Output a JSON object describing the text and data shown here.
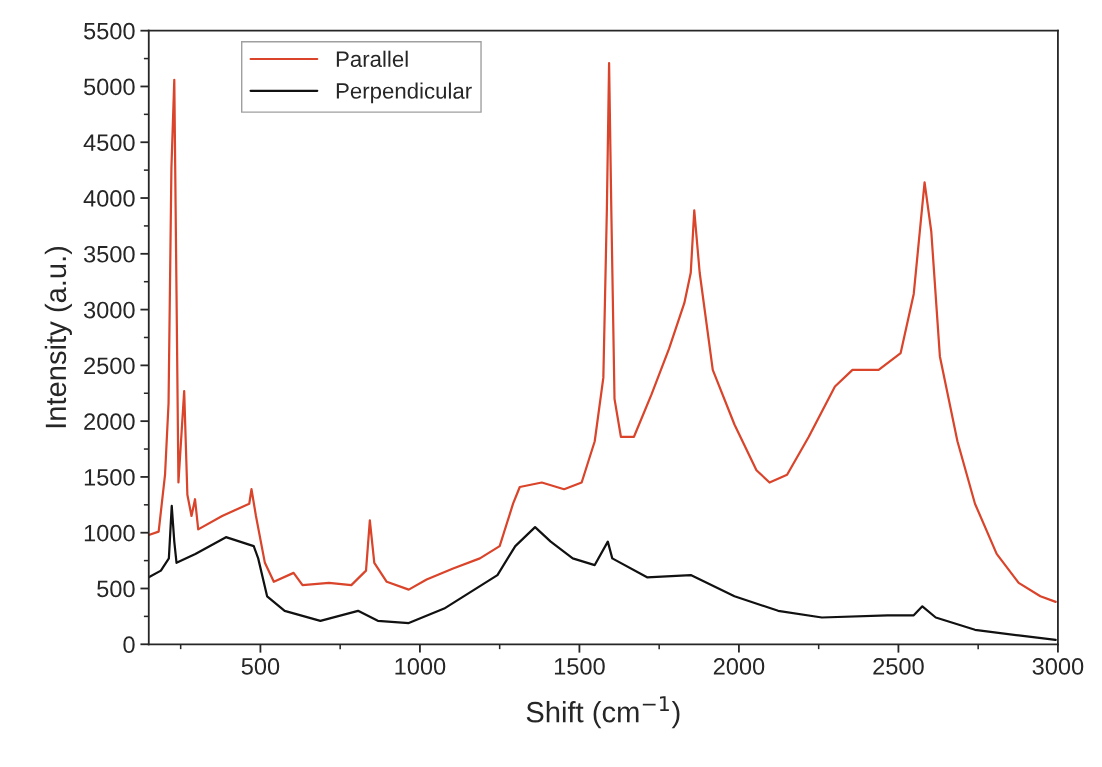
{
  "chart_data": {
    "type": "line",
    "xlabel": "Shift (cm$^{−1}$)",
    "ylabel": "Intensity (a.u.)",
    "xlim": [
      150,
      3000
    ],
    "ylim": [
      0,
      5500
    ],
    "xticks": [
      500,
      1000,
      1500,
      2000,
      2500,
      3000
    ],
    "yticks": [
      0,
      500,
      1000,
      1500,
      2000,
      2500,
      3000,
      3500,
      4000,
      4500,
      5000,
      5500
    ],
    "grid": false,
    "legend": "top left",
    "line_style": "solid",
    "marker": "none",
    "series": [
      {
        "name": "Parallel",
        "color": "#d9442a",
        "x": [
          150,
          181,
          201,
          212,
          221,
          230,
          237,
          243,
          261,
          271,
          284,
          295,
          305,
          380,
          465,
          472,
          486,
          514,
          542,
          604,
          632,
          715,
          785,
          831,
          843,
          857,
          896,
          965,
          1021,
          1104,
          1188,
          1250,
          1292,
          1313,
          1382,
          1452,
          1507,
          1548,
          1575,
          1586,
          1593,
          1600,
          1610,
          1630,
          1671,
          1726,
          1781,
          1829,
          1849,
          1860,
          1877,
          1918,
          1986,
          2055,
          2096,
          2151,
          2219,
          2301,
          2356,
          2438,
          2507,
          2548,
          2582,
          2603,
          2630,
          2685,
          2740,
          2808,
          2877,
          2945,
          2993
        ],
        "values": [
          980,
          1010,
          1520,
          2160,
          4270,
          5060,
          3140,
          1450,
          2270,
          1340,
          1150,
          1300,
          1030,
          1150,
          1260,
          1390,
          1150,
          730,
          560,
          640,
          530,
          550,
          530,
          660,
          1110,
          730,
          560,
          490,
          580,
          680,
          770,
          880,
          1260,
          1410,
          1450,
          1390,
          1450,
          1820,
          2390,
          3890,
          5210,
          3890,
          2200,
          1860,
          1860,
          2240,
          2650,
          3060,
          3330,
          3890,
          3330,
          2460,
          1970,
          1560,
          1450,
          1520,
          1860,
          2310,
          2460,
          2460,
          2610,
          3140,
          4140,
          3700,
          2580,
          1820,
          1260,
          810,
          550,
          430,
          380
        ]
      },
      {
        "name": "Perpendicular",
        "color": "#111111",
        "x": [
          150,
          188,
          213,
          222,
          230,
          237,
          296,
          392,
          479,
          493,
          521,
          576,
          688,
          806,
          868,
          965,
          1076,
          1243,
          1299,
          1361,
          1410,
          1479,
          1548,
          1589,
          1603,
          1712,
          1849,
          1986,
          2123,
          2260,
          2466,
          2548,
          2575,
          2617,
          2740,
          2877,
          2993
        ],
        "values": [
          600,
          660,
          770,
          1240,
          920,
          730,
          810,
          960,
          880,
          770,
          430,
          300,
          210,
          300,
          210,
          190,
          320,
          620,
          880,
          1050,
          920,
          770,
          710,
          920,
          770,
          600,
          620,
          430,
          300,
          240,
          260,
          260,
          340,
          240,
          130,
          80,
          40
        ]
      }
    ]
  }
}
